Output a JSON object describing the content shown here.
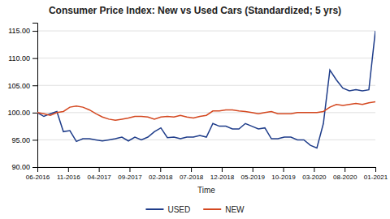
{
  "chart_data": {
    "type": "line",
    "title": "Consumer Price Index: New vs Used Cars (Standardized; 5 yrs)",
    "x_label": "Time",
    "x": [
      0,
      0.2115,
      0.4231,
      0.6346,
      0.8462,
      1.0577,
      1.2692,
      1.4808,
      1.6923,
      1.9038,
      2.1154,
      2.3269,
      2.5385,
      2.75,
      2.9615,
      3.1731,
      3.3846,
      3.5962,
      3.8077,
      4.0192,
      4.2308,
      4.4423,
      4.6538,
      4.8654,
      5.0769,
      5.2885,
      5.5,
      5.7115,
      5.9231,
      6.1346,
      6.3462,
      6.5577,
      6.7692,
      6.9808,
      7.1923,
      7.4038,
      7.6154,
      7.8269,
      8.0385,
      8.25,
      8.4615,
      8.6731,
      8.8846,
      9.0962,
      9.3077,
      9.5192,
      9.7308,
      9.9423,
      10.1538,
      10.3654,
      10.5769,
      10.7885,
      11
    ],
    "xlim": [
      0,
      11
    ],
    "xticks": [
      {
        "value": 0,
        "label": "06-2016"
      },
      {
        "value": 1,
        "label": "11-2016"
      },
      {
        "value": 2,
        "label": "04-2017"
      },
      {
        "value": 3,
        "label": "09-2017"
      },
      {
        "value": 4,
        "label": "02-2018"
      },
      {
        "value": 5,
        "label": "07-2018"
      },
      {
        "value": 6,
        "label": "12-2018"
      },
      {
        "value": 7,
        "label": "05-2019"
      },
      {
        "value": 8,
        "label": "10-2019"
      },
      {
        "value": 9,
        "label": "03-2020"
      },
      {
        "value": 10,
        "label": "08-2020"
      },
      {
        "value": 11,
        "label": "01-2021"
      }
    ],
    "ylim": [
      90.0,
      116.5
    ],
    "yticks": [
      {
        "value": 90.0,
        "label": "90.00"
      },
      {
        "value": 95.0,
        "label": "95.00"
      },
      {
        "value": 100.0,
        "label": "100.00"
      },
      {
        "value": 105.0,
        "label": "105.00"
      },
      {
        "value": 110.0,
        "label": "110.00"
      },
      {
        "value": 115.0,
        "label": "115.00"
      }
    ],
    "grid": true,
    "legend": "bottom",
    "series": [
      {
        "name": "USED",
        "color": "#1f3d8a",
        "values": [
          100.0,
          99.3,
          99.8,
          100.2,
          96.5,
          96.7,
          94.7,
          95.2,
          95.2,
          95.0,
          94.8,
          95.0,
          95.2,
          95.5,
          94.8,
          95.5,
          95.0,
          95.5,
          96.5,
          97.2,
          95.4,
          95.5,
          95.2,
          95.5,
          95.5,
          95.8,
          95.5,
          98.0,
          97.5,
          97.5,
          97.0,
          97.0,
          98.0,
          97.5,
          97.0,
          97.2,
          95.2,
          95.2,
          95.5,
          95.5,
          95.0,
          95.0,
          94.0,
          93.5,
          98.0,
          107.8,
          106.0,
          104.5,
          104.0,
          104.2,
          104.0,
          104.2,
          115.0
        ]
      },
      {
        "name": "NEW",
        "color": "#d44820",
        "values": [
          100.0,
          99.8,
          99.5,
          100.0,
          100.2,
          101.0,
          101.2,
          101.0,
          100.5,
          99.8,
          99.2,
          98.8,
          98.6,
          98.8,
          99.0,
          99.3,
          99.3,
          99.2,
          98.8,
          99.2,
          99.3,
          99.2,
          99.5,
          99.2,
          99.0,
          99.3,
          99.5,
          100.3,
          100.3,
          100.5,
          100.5,
          100.3,
          100.2,
          100.0,
          99.8,
          100.0,
          100.2,
          99.8,
          99.8,
          99.8,
          100.0,
          100.0,
          100.0,
          100.0,
          100.2,
          101.0,
          101.5,
          101.3,
          101.5,
          101.7,
          101.5,
          101.8,
          102.0
        ]
      }
    ]
  }
}
